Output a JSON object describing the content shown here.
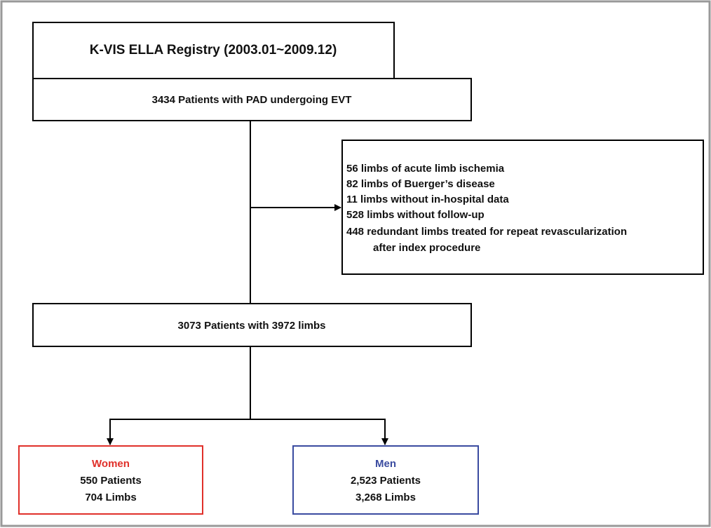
{
  "nodes": [
    {
      "label": "K-VIS ELLA Registry (2003.01~2009.12)"
    },
    {
      "label": "3434 Patients with PAD undergoing EVT"
    },
    {
      "lines": [
        "56 limbs of acute limb ischemia",
        "82 limbs of Buerger’s disease",
        "11 limbs without in-hospital data",
        "528 limbs without follow-up",
        "448 redundant limbs treated for repeat revascularization",
        "after index procedure"
      ]
    },
    {
      "label": "3073 Patients with 3972 limbs"
    },
    {
      "lines": [
        "Women",
        "550 Patients",
        "704 Limbs"
      ]
    },
    {
      "lines": [
        "Men",
        "2,523 Patients",
        "3,268 Limbs"
      ]
    }
  ]
}
